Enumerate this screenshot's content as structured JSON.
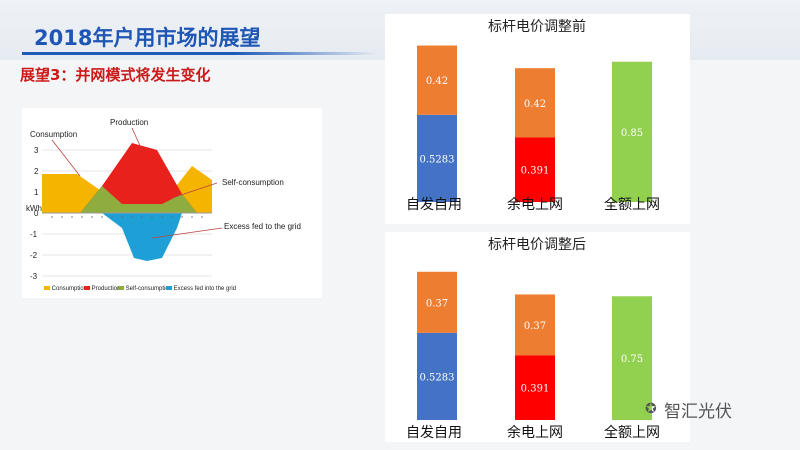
{
  "header": {
    "title": "2018年户用市场的展望",
    "subtitle": "展望3：并网模式将发生变化"
  },
  "watermark": "智汇光伏",
  "area_chart": {
    "ylabel": "kWh",
    "yticks": [
      "3",
      "2",
      "1",
      "0",
      "-1",
      "-2",
      "-3"
    ],
    "annotations": {
      "consumption": "Consumption",
      "production": "Production",
      "self": "Self-consumption",
      "excess": "Excess fed to the grid"
    },
    "legend": [
      "Consumption",
      "Production",
      "Self-consumption",
      "Excess fed into the grid"
    ],
    "colors": {
      "consumption": "#f5b400",
      "production": "#e8211d",
      "self": "#8fad3f",
      "excess": "#1ea0d6"
    }
  },
  "chart_data": [
    {
      "type": "bar",
      "stacked": true,
      "title": "标杆电价调整前",
      "categories": [
        "自发自用",
        "余电上网",
        "全额上网"
      ],
      "series": [
        {
          "values": [
            0.5283,
            0.391,
            0.85
          ],
          "colors": [
            "#4472c4",
            "#ff0000",
            "#92d050"
          ]
        },
        {
          "values": [
            0.42,
            0.42,
            0
          ],
          "colors": [
            "#ed7d31",
            "#ed7d31",
            "#ed7d31"
          ]
        }
      ],
      "value_labels": [
        [
          "0.5283",
          "0.391",
          "0.85"
        ],
        [
          "0.42",
          "0.42",
          ""
        ]
      ]
    },
    {
      "type": "bar",
      "stacked": true,
      "title": "标杆电价调整后",
      "categories": [
        "自发自用",
        "余电上网",
        "全额上网"
      ],
      "series": [
        {
          "values": [
            0.5283,
            0.391,
            0.75
          ],
          "colors": [
            "#4472c4",
            "#ff0000",
            "#92d050"
          ]
        },
        {
          "values": [
            0.37,
            0.37,
            0
          ],
          "colors": [
            "#ed7d31",
            "#ed7d31",
            "#ed7d31"
          ]
        }
      ],
      "value_labels": [
        [
          "0.5283",
          "0.391",
          "0.75"
        ],
        [
          "0.37",
          "0.37",
          ""
        ]
      ]
    }
  ]
}
